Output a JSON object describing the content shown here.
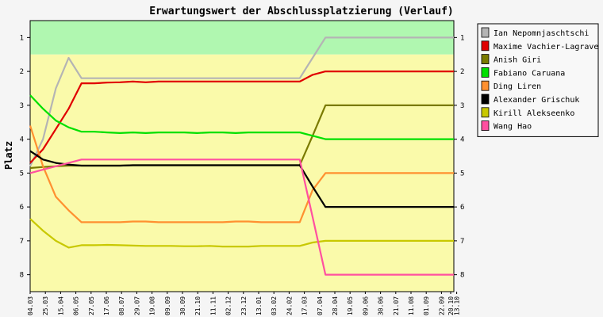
{
  "chart_data": {
    "type": "line",
    "title": "Erwartungswert der Abschlussplatzierung (Verlauf)",
    "xlabel": "",
    "ylabel": "Platz",
    "ylim": [
      0.5,
      8.5
    ],
    "y_inverted": true,
    "yticks": [
      "1",
      "2",
      "3",
      "4",
      "5",
      "6",
      "7",
      "8"
    ],
    "grid": false,
    "legend_position": "right",
    "bands": [
      {
        "from": 0.5,
        "to": 1.5,
        "color": "#b0f7b0"
      },
      {
        "from": 1.5,
        "to": 8.5,
        "color": "#fafaaa"
      }
    ],
    "x_tick_labels": [
      "04.03",
      "25.03",
      "15.04",
      "06.05",
      "27.05",
      "17.06",
      "08.07",
      "29.07",
      "19.08",
      "09.09",
      "30.09",
      "21.10",
      "11.11",
      "02.12",
      "23.12",
      "13.01",
      "03.02",
      "24.02",
      "17.03",
      "07.04",
      "28.04",
      "19.05",
      "09.06",
      "30.06",
      "21.07",
      "11.08",
      "01.09",
      "22.09",
      "13.10",
      "20.10"
    ],
    "x": [
      "04.03",
      "11.03",
      "18.03",
      "25.03",
      "15.04",
      "06.05",
      "27.05",
      "17.06",
      "08.07",
      "29.07",
      "19.08",
      "09.09",
      "30.09",
      "21.10",
      "11.11",
      "02.12",
      "23.12",
      "13.01",
      "03.02",
      "24.02",
      "17.03",
      "07.04",
      "14.04",
      "21.04",
      "28.04",
      "19.05",
      "09.06",
      "30.06",
      "21.07",
      "11.08",
      "01.09",
      "22.09",
      "13.10",
      "20.10"
    ],
    "series": [
      {
        "name": "Ian Nepomnjaschtschi",
        "color": "#b4b4b4",
        "values": [
          4.8,
          4.0,
          2.5,
          1.6,
          2.2,
          2.2,
          2.2,
          2.2,
          2.2,
          2.2,
          2.2,
          2.2,
          2.2,
          2.2,
          2.2,
          2.2,
          2.2,
          2.2,
          2.2,
          2.2,
          2.2,
          2.2,
          1.6,
          1.0,
          1.0,
          1.0,
          1.0,
          1.0,
          1.0,
          1.0,
          1.0,
          1.0,
          1.0,
          1.0
        ]
      },
      {
        "name": "Maxime Vachier-Lagrave",
        "color": "#e00000",
        "values": [
          4.7,
          4.3,
          3.7,
          3.1,
          2.35,
          2.35,
          2.33,
          2.32,
          2.3,
          2.32,
          2.3,
          2.3,
          2.3,
          2.3,
          2.3,
          2.3,
          2.3,
          2.3,
          2.3,
          2.3,
          2.3,
          2.3,
          2.1,
          2.0,
          2.0,
          2.0,
          2.0,
          2.0,
          2.0,
          2.0,
          2.0,
          2.0,
          2.0,
          2.0
        ]
      },
      {
        "name": "Anish Giri",
        "color": "#7a7a00",
        "values": [
          4.85,
          4.82,
          4.8,
          4.78,
          4.78,
          4.78,
          4.78,
          4.78,
          4.77,
          4.77,
          4.77,
          4.77,
          4.77,
          4.77,
          4.77,
          4.77,
          4.77,
          4.77,
          4.77,
          4.77,
          4.77,
          4.77,
          3.9,
          3.0,
          3.0,
          3.0,
          3.0,
          3.0,
          3.0,
          3.0,
          3.0,
          3.0,
          3.0,
          3.0
        ]
      },
      {
        "name": "Fabiano Caruana",
        "color": "#00e000",
        "values": [
          2.7,
          3.1,
          3.45,
          3.65,
          3.78,
          3.78,
          3.8,
          3.82,
          3.8,
          3.82,
          3.8,
          3.8,
          3.8,
          3.82,
          3.8,
          3.8,
          3.82,
          3.8,
          3.8,
          3.8,
          3.8,
          3.8,
          3.9,
          4.0,
          4.0,
          4.0,
          4.0,
          4.0,
          4.0,
          4.0,
          4.0,
          4.0,
          4.0,
          4.0
        ]
      },
      {
        "name": "Ding Liren",
        "color": "#ff9030",
        "values": [
          3.6,
          4.8,
          5.7,
          6.1,
          6.45,
          6.45,
          6.45,
          6.45,
          6.43,
          6.43,
          6.45,
          6.45,
          6.45,
          6.45,
          6.45,
          6.45,
          6.43,
          6.43,
          6.45,
          6.45,
          6.45,
          6.45,
          5.5,
          5.0,
          5.0,
          5.0,
          5.0,
          5.0,
          5.0,
          5.0,
          5.0,
          5.0,
          5.0,
          5.0
        ]
      },
      {
        "name": "Alexander Grischuk",
        "color": "#000000",
        "values": [
          4.35,
          4.6,
          4.7,
          4.75,
          4.78,
          4.78,
          4.78,
          4.78,
          4.77,
          4.77,
          4.77,
          4.77,
          4.77,
          4.77,
          4.77,
          4.77,
          4.77,
          4.77,
          4.77,
          4.77,
          4.77,
          4.77,
          5.4,
          6.0,
          6.0,
          6.0,
          6.0,
          6.0,
          6.0,
          6.0,
          6.0,
          6.0,
          6.0,
          6.0
        ]
      },
      {
        "name": "Kirill Alekseenko",
        "color": "#c8c800",
        "values": [
          6.35,
          6.7,
          7.0,
          7.2,
          7.13,
          7.13,
          7.12,
          7.13,
          7.14,
          7.15,
          7.15,
          7.15,
          7.16,
          7.16,
          7.15,
          7.17,
          7.17,
          7.17,
          7.15,
          7.15,
          7.15,
          7.15,
          7.05,
          7.0,
          7.0,
          7.0,
          7.0,
          7.0,
          7.0,
          7.0,
          7.0,
          7.0,
          7.0,
          7.0
        ]
      },
      {
        "name": "Wang Hao",
        "color": "#ff50a0",
        "values": [
          5.0,
          4.9,
          4.8,
          4.7,
          4.6,
          4.6,
          4.6,
          4.6,
          4.6,
          4.6,
          4.6,
          4.6,
          4.6,
          4.6,
          4.6,
          4.6,
          4.6,
          4.6,
          4.6,
          4.6,
          4.6,
          4.6,
          6.3,
          8.0,
          8.0,
          8.0,
          8.0,
          8.0,
          8.0,
          8.0,
          8.0,
          8.0,
          8.0,
          8.0
        ]
      }
    ]
  }
}
